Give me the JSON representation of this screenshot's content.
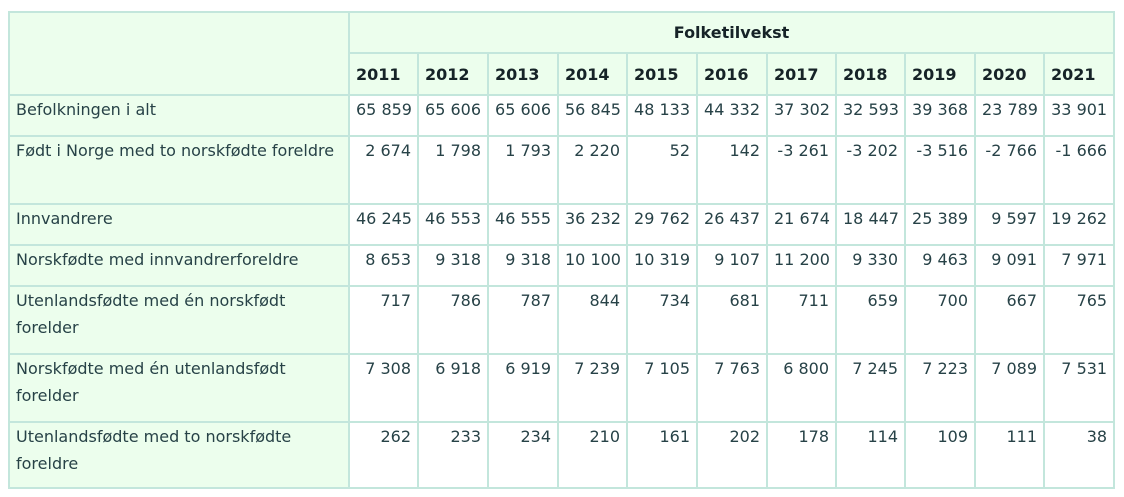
{
  "table": {
    "group_header": "Folketilvekst",
    "years": [
      "2011",
      "2012",
      "2013",
      "2014",
      "2015",
      "2016",
      "2017",
      "2018",
      "2019",
      "2020",
      "2021"
    ],
    "rows": [
      {
        "label": "Befolkningen i alt",
        "values": [
          "65 859",
          "65 606",
          "65 606",
          "56 845",
          "48 133",
          "44 332",
          "37 302",
          "32 593",
          "39 368",
          "23 789",
          "33 901"
        ]
      },
      {
        "label": "Født i Norge med to norskfødte foreldre",
        "values": [
          "2 674",
          "1 798",
          "1 793",
          "2 220",
          "52",
          "142",
          "-3 261",
          "-3 202",
          "-3 516",
          "-2 766",
          "-1 666"
        ]
      },
      {
        "label": "Innvandrere",
        "values": [
          "46 245",
          "46 553",
          "46 555",
          "36 232",
          "29 762",
          "26 437",
          "21 674",
          "18 447",
          "25 389",
          "9 597",
          "19 262"
        ]
      },
      {
        "label": "Norskfødte med innvandrerforeldre",
        "values": [
          "8 653",
          "9 318",
          "9 318",
          "10 100",
          "10 319",
          "9 107",
          "11 200",
          "9 330",
          "9 463",
          "9 091",
          "7 971"
        ]
      },
      {
        "label": "Utenlandsfødte med én norskfødt forelder",
        "values": [
          "717",
          "786",
          "787",
          "844",
          "734",
          "681",
          "711",
          "659",
          "700",
          "667",
          "765"
        ]
      },
      {
        "label": "Norskfødte med én utenlandsfødt forelder",
        "values": [
          "7 308",
          "6 918",
          "6 919",
          "7 239",
          "7 105",
          "7 763",
          "6 800",
          "7 245",
          "7 223",
          "7 089",
          "7 531"
        ]
      },
      {
        "label": "Utenlandsfødte med to norskfødte foreldre",
        "values": [
          "262",
          "233",
          "234",
          "210",
          "161",
          "202",
          "178",
          "114",
          "109",
          "111",
          "38"
        ]
      }
    ]
  }
}
